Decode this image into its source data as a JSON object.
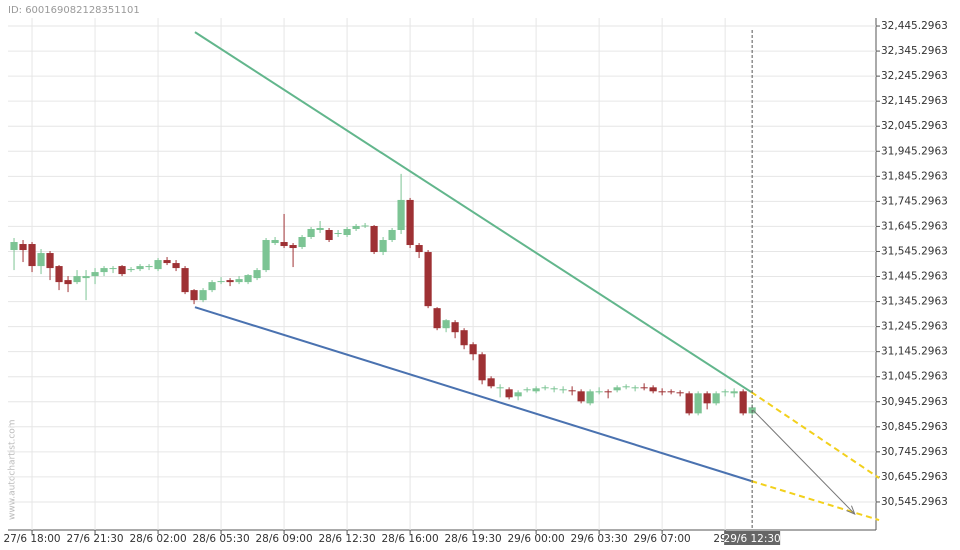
{
  "id_text": "ID: 600169082128351101",
  "watermark": "www.autochartist.com",
  "chart_data": {
    "type": "candlestick",
    "x": [
      0,
      1,
      2,
      3,
      4,
      5,
      6,
      7,
      8,
      9,
      10,
      11,
      12,
      13,
      14,
      15,
      16,
      17,
      18,
      19,
      20,
      21,
      22,
      23,
      24,
      25,
      26,
      27,
      28,
      29,
      30,
      31,
      32,
      33,
      34,
      35,
      36,
      37,
      38,
      39,
      40,
      41,
      42,
      43,
      44,
      45,
      46,
      47,
      48,
      49,
      50,
      51,
      52,
      53,
      54,
      55,
      56,
      57,
      58,
      59,
      60,
      61,
      62,
      63,
      64,
      65,
      66,
      67,
      68,
      69,
      70,
      71,
      72,
      73,
      74,
      75,
      76,
      77,
      78,
      79,
      80,
      81,
      82
    ],
    "open": [
      31551,
      31575,
      31575,
      31487,
      31539,
      31487,
      31431,
      31423,
      31439,
      31447,
      31463,
      31475,
      31487,
      31471,
      31475,
      31483,
      31475,
      31511,
      31499,
      31479,
      31391,
      31351,
      31391,
      31423,
      31431,
      31423,
      31423,
      31439,
      31471,
      31579,
      31583,
      31571,
      31563,
      31603,
      31631,
      31631,
      31615,
      31611,
      31635,
      31647,
      31647,
      31543,
      31591,
      31631,
      31751,
      31571,
      31543,
      31319,
      31239,
      31263,
      31231,
      31175,
      31135,
      31039,
      30999,
      30995,
      30967,
      30991,
      30987,
      30999,
      30995,
      30991,
      30991,
      30987,
      30939,
      30983,
      30987,
      30991,
      31003,
      30999,
      31003,
      31003,
      30987,
      30987,
      30983,
      30979,
      30899,
      30979,
      30939,
      30983,
      30979,
      30987,
      30899
    ],
    "high": [
      31599,
      31591,
      31583,
      31555,
      31547,
      31491,
      31447,
      31471,
      31471,
      31479,
      31487,
      31487,
      31491,
      31483,
      31495,
      31495,
      31519,
      31523,
      31511,
      31487,
      31395,
      31399,
      31431,
      31443,
      31439,
      31447,
      31455,
      31479,
      31599,
      31603,
      31695,
      31579,
      31611,
      31643,
      31667,
      31639,
      31631,
      31643,
      31655,
      31659,
      31651,
      31603,
      31639,
      31855,
      31759,
      31579,
      31551,
      31323,
      31275,
      31271,
      31239,
      31183,
      31143,
      31047,
      31015,
      31003,
      30991,
      31003,
      31007,
      31011,
      31007,
      31007,
      31007,
      30995,
      30995,
      31003,
      30995,
      31011,
      31015,
      31011,
      31019,
      31011,
      30999,
      30995,
      30991,
      30987,
      30987,
      30987,
      30987,
      30995,
      30999,
      30995,
      30935
    ],
    "low": [
      31471,
      31503,
      31463,
      31455,
      31431,
      31391,
      31383,
      31415,
      31351,
      31415,
      31447,
      31459,
      31447,
      31463,
      31467,
      31471,
      31467,
      31491,
      31467,
      31375,
      31335,
      31343,
      31383,
      31415,
      31407,
      31415,
      31415,
      31431,
      31463,
      31571,
      31559,
      31483,
      31555,
      31595,
      31619,
      31583,
      31603,
      31603,
      31627,
      31639,
      31535,
      31531,
      31583,
      31615,
      31559,
      31519,
      31319,
      31231,
      31223,
      31199,
      31155,
      31111,
      31015,
      30999,
      30963,
      30955,
      30951,
      30983,
      30979,
      30991,
      30983,
      30979,
      30971,
      30939,
      30931,
      30975,
      30959,
      30983,
      30995,
      30987,
      30991,
      30979,
      30971,
      30975,
      30967,
      30891,
      30891,
      30915,
      30931,
      30967,
      30963,
      30891,
      30891
    ],
    "close": [
      31583,
      31551,
      31487,
      31539,
      31479,
      31423,
      31415,
      31447,
      31447,
      31463,
      31479,
      31479,
      31455,
      31475,
      31487,
      31487,
      31511,
      31499,
      31479,
      31383,
      31351,
      31391,
      31423,
      31427,
      31423,
      31435,
      31451,
      31471,
      31591,
      31591,
      31567,
      31559,
      31603,
      31635,
      31639,
      31591,
      31619,
      31635,
      31647,
      31649,
      31543,
      31591,
      31631,
      31751,
      31571,
      31543,
      31327,
      31239,
      31271,
      31223,
      31171,
      31135,
      31031,
      31007,
      31003,
      30963,
      30983,
      30995,
      30999,
      31003,
      30999,
      30995,
      30987,
      30947,
      30987,
      30987,
      30983,
      31003,
      31007,
      31003,
      30999,
      30987,
      30983,
      30983,
      30979,
      30899,
      30979,
      30939,
      30979,
      30987,
      30987,
      30899,
      30923
    ],
    "up_color": "#7cc494",
    "down_color": "#9e3134",
    "xlim": [
      -0.67,
      95.76
    ],
    "ylim": [
      30465.2963,
      32477.2963
    ],
    "xticks": [
      {
        "value": 2,
        "label": "27/6 18:00"
      },
      {
        "value": 9,
        "label": "27/6 21:30"
      },
      {
        "value": 16,
        "label": "28/6 02:00"
      },
      {
        "value": 23,
        "label": "28/6 05:30"
      },
      {
        "value": 30,
        "label": "28/6 09:00"
      },
      {
        "value": 37,
        "label": "28/6 12:30"
      },
      {
        "value": 44,
        "label": "28/6 16:00"
      },
      {
        "value": 51,
        "label": "28/6 19:30"
      },
      {
        "value": 58,
        "label": "29/6 00:00"
      },
      {
        "value": 65,
        "label": "29/6 03:30"
      },
      {
        "value": 72,
        "label": "29/6 07:00"
      },
      {
        "value": 79,
        "label": "29/6"
      }
    ],
    "yticks": [
      {
        "value": 30545.2963,
        "label": "30,545.2963"
      },
      {
        "value": 30645.2963,
        "label": "30,645.2963"
      },
      {
        "value": 30745.2963,
        "label": "30,745.2963"
      },
      {
        "value": 30845.2963,
        "label": "30,845.2963"
      },
      {
        "value": 30945.2963,
        "label": "30,945.2963"
      },
      {
        "value": 31045.2963,
        "label": "31,045.2963"
      },
      {
        "value": 31145.2963,
        "label": "31,145.2963"
      },
      {
        "value": 31245.2963,
        "label": "31,245.2963"
      },
      {
        "value": 31345.2963,
        "label": "31,345.2963"
      },
      {
        "value": 31445.2963,
        "label": "31,445.2963"
      },
      {
        "value": 31545.2963,
        "label": "31,545.2963"
      },
      {
        "value": 31645.2963,
        "label": "31,645.2963"
      },
      {
        "value": 31745.2963,
        "label": "31,745.2963"
      },
      {
        "value": 31845.2963,
        "label": "31,845.2963"
      },
      {
        "value": 31945.2963,
        "label": "31,945.2963"
      },
      {
        "value": 32045.2963,
        "label": "32,045.2963"
      },
      {
        "value": 32145.2963,
        "label": "32,145.2963"
      },
      {
        "value": 32245.2963,
        "label": "32,245.2963"
      },
      {
        "value": 32345.2963,
        "label": "32,345.2963"
      },
      {
        "value": 32445.2963,
        "label": "32,445.2963"
      }
    ],
    "grid": true,
    "trendlines": [
      {
        "color": "#62b68c",
        "x": [
          20.1,
          81.9
        ],
        "y": [
          32421,
          30984
        ]
      },
      {
        "color": "#4a72b0",
        "x": [
          20.1,
          81.9
        ],
        "y": [
          31323,
          30629
        ]
      }
    ],
    "projections": [
      {
        "color": "#f2d01c",
        "x": [
          81.9,
          96.1
        ],
        "y": [
          30984,
          30641
        ]
      },
      {
        "color": "#f2d01c",
        "x": [
          81.9,
          96.1
        ],
        "y": [
          30629,
          30473
        ]
      }
    ],
    "arrow": {
      "color": "#777777",
      "x": [
        82.1,
        93.4
      ],
      "y": [
        30912,
        30497
      ]
    },
    "crosshair": {
      "x": 82,
      "label": "29/6 12:30"
    }
  }
}
